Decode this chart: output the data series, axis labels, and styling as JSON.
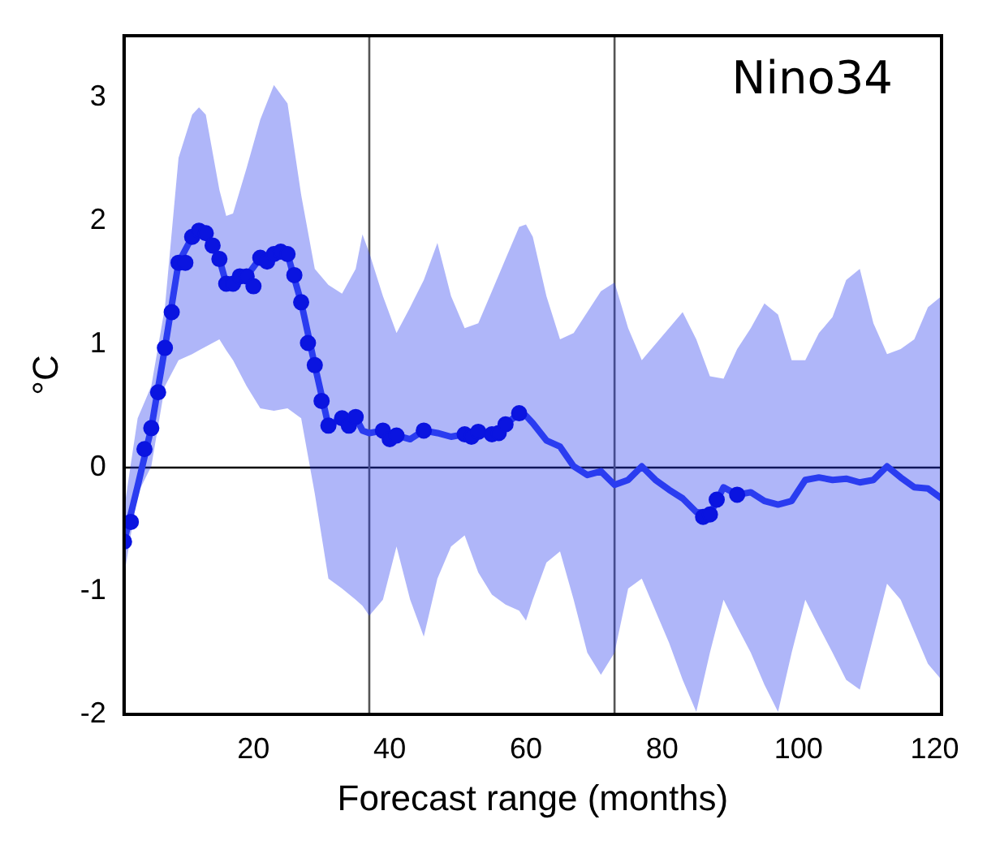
{
  "chart_data": {
    "type": "line",
    "xlabel": "Forecast range (months)",
    "ylabel": "°C",
    "annotations": [
      "Nino34"
    ],
    "xlim": [
      1,
      121
    ],
    "xticks": [
      20,
      40,
      60,
      80,
      100,
      120
    ],
    "ylim": [
      -2,
      3.5
    ],
    "yticks": [
      -2,
      -1,
      0,
      1,
      2,
      3
    ],
    "grid": false,
    "legend": false,
    "ref_lines": [
      {
        "axis": "y",
        "value": 0,
        "color": "#000000"
      },
      {
        "axis": "x",
        "value": 37,
        "color": "#555555"
      },
      {
        "axis": "x",
        "value": 73,
        "color": "#555555"
      }
    ],
    "series": [
      {
        "color": "#2a3cf0",
        "marker": "none",
        "x": [
          1,
          3,
          5,
          7,
          9,
          11,
          12,
          13,
          15,
          16,
          17,
          19,
          21,
          23,
          25,
          27,
          29,
          31,
          33,
          35,
          36,
          37,
          39,
          41,
          43,
          45,
          47,
          49,
          51,
          53,
          55,
          57,
          59,
          60,
          61,
          63,
          65,
          67,
          69,
          71,
          73,
          75,
          77,
          79,
          81,
          83,
          85,
          87,
          89,
          91,
          93,
          95,
          97,
          99,
          101,
          103,
          105,
          107,
          109,
          111,
          113,
          115,
          117,
          119,
          121
        ],
        "values": [
          -0.6,
          -0.15,
          0.32,
          0.97,
          1.66,
          1.87,
          1.92,
          1.9,
          1.69,
          1.49,
          1.49,
          1.55,
          1.7,
          1.73,
          1.73,
          1.34,
          0.83,
          0.34,
          0.4,
          0.41,
          0.3,
          0.28,
          0.3,
          0.26,
          0.23,
          0.3,
          0.28,
          0.25,
          0.27,
          0.29,
          0.27,
          0.35,
          0.44,
          0.42,
          0.36,
          0.22,
          0.17,
          0.01,
          -0.06,
          -0.03,
          -0.14,
          -0.1,
          0.01,
          -0.1,
          -0.18,
          -0.25,
          -0.36,
          -0.38,
          -0.16,
          -0.22,
          -0.2,
          -0.27,
          -0.3,
          -0.27,
          -0.1,
          -0.08,
          -0.1,
          -0.09,
          -0.12,
          -0.1,
          0.01,
          -0.08,
          -0.16,
          -0.17,
          -0.25
        ],
        "upper": [
          -0.34,
          0.4,
          0.66,
          1.3,
          2.51,
          2.86,
          2.92,
          2.86,
          2.25,
          2.04,
          2.06,
          2.43,
          2.82,
          3.1,
          2.95,
          2.21,
          1.61,
          1.48,
          1.41,
          1.61,
          1.89,
          1.74,
          1.39,
          1.09,
          1.3,
          1.52,
          1.82,
          1.39,
          1.13,
          1.17,
          1.43,
          1.69,
          1.95,
          1.97,
          1.87,
          1.39,
          1.04,
          1.09,
          1.26,
          1.43,
          1.5,
          1.13,
          0.87,
          1.0,
          1.13,
          1.26,
          1.04,
          0.74,
          0.72,
          0.96,
          1.13,
          1.33,
          1.24,
          0.87,
          0.87,
          1.09,
          1.22,
          1.52,
          1.61,
          1.17,
          0.92,
          0.96,
          1.04,
          1.3,
          1.39
        ],
        "lower": [
          -0.88,
          -0.21,
          0.01,
          0.66,
          0.87,
          0.92,
          0.95,
          0.98,
          1.04,
          0.95,
          0.87,
          0.66,
          0.48,
          0.46,
          0.48,
          0.4,
          -0.21,
          -0.9,
          -0.98,
          -1.07,
          -1.12,
          -1.2,
          -1.07,
          -0.64,
          -1.07,
          -1.37,
          -0.9,
          -0.64,
          -0.55,
          -0.85,
          -1.03,
          -1.11,
          -1.16,
          -1.24,
          -1.07,
          -0.77,
          -0.68,
          -1.07,
          -1.5,
          -1.68,
          -1.5,
          -0.98,
          -0.9,
          -1.16,
          -1.42,
          -1.72,
          -1.98,
          -1.5,
          -1.07,
          -1.29,
          -1.5,
          -1.76,
          -1.98,
          -1.5,
          -1.07,
          -1.29,
          -1.5,
          -1.72,
          -1.8,
          -1.37,
          -0.94,
          -1.07,
          -1.33,
          -1.59,
          -1.72
        ]
      },
      {
        "type": "scatter",
        "color": "#0a14e0",
        "marker": "circle",
        "x": [
          1,
          2,
          4,
          5,
          6,
          7,
          8,
          9,
          10,
          11,
          12,
          13,
          14,
          15,
          16,
          17,
          18,
          19,
          20,
          21,
          22,
          23,
          24,
          25,
          26,
          27,
          28,
          29,
          30,
          31,
          33,
          34,
          35,
          39,
          40,
          41,
          45,
          51,
          52,
          53,
          55,
          56,
          57,
          59,
          86,
          87,
          88,
          91
        ],
        "values": [
          -0.6,
          -0.44,
          0.15,
          0.32,
          0.61,
          0.97,
          1.26,
          1.66,
          1.66,
          1.87,
          1.92,
          1.9,
          1.8,
          1.69,
          1.49,
          1.49,
          1.55,
          1.55,
          1.47,
          1.7,
          1.67,
          1.73,
          1.75,
          1.73,
          1.56,
          1.34,
          1.01,
          0.83,
          0.54,
          0.34,
          0.4,
          0.34,
          0.41,
          0.3,
          0.23,
          0.26,
          0.3,
          0.27,
          0.25,
          0.29,
          0.27,
          0.28,
          0.35,
          0.44,
          -0.4,
          -0.38,
          -0.26,
          -0.22
        ]
      }
    ]
  }
}
